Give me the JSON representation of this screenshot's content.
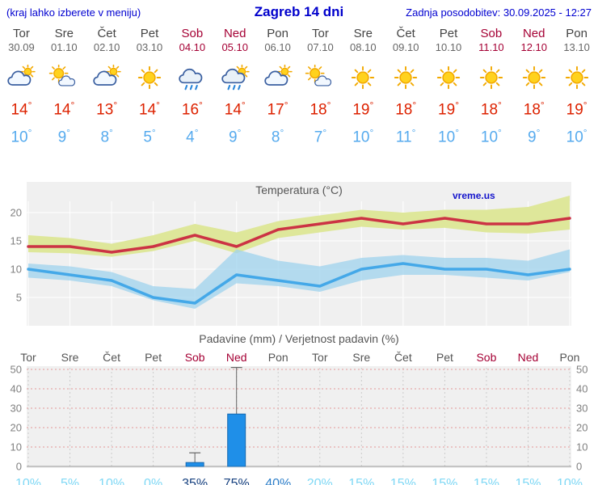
{
  "header": {
    "hint": "(kraj lahko izberete v meniju)",
    "title": "Zagreb 14 dni",
    "updated": "Zadnja posodobitev: 30.09.2025 - 12:27"
  },
  "watermark": "vreme.us",
  "colors": {
    "link_blue": "#0000d0",
    "weekend": "#a50034",
    "tmax_red": "#dd2200",
    "tmin_blue": "#55aaee",
    "temp_line_max": "#cc3344",
    "temp_line_min": "#44a8e8",
    "temp_band_max": "#dce695",
    "temp_band_min": "#9fd3ee",
    "bar_blue": "#1f8fe8",
    "panel_gray": "#f0f0f0"
  },
  "days": [
    {
      "name": "Tor",
      "date": "30.09",
      "icon": "cloud-sun",
      "tmax": 14,
      "tmin": 10,
      "weekend": false
    },
    {
      "name": "Sre",
      "date": "01.10",
      "icon": "sun-cloud",
      "tmax": 14,
      "tmin": 9,
      "weekend": false
    },
    {
      "name": "Čet",
      "date": "02.10",
      "icon": "cloud-sun",
      "tmax": 13,
      "tmin": 8,
      "weekend": false
    },
    {
      "name": "Pet",
      "date": "03.10",
      "icon": "sun",
      "tmax": 14,
      "tmin": 5,
      "weekend": false
    },
    {
      "name": "Sob",
      "date": "04.10",
      "icon": "rain",
      "tmax": 16,
      "tmin": 4,
      "weekend": true
    },
    {
      "name": "Ned",
      "date": "05.10",
      "icon": "rain-sun",
      "tmax": 14,
      "tmin": 9,
      "weekend": true
    },
    {
      "name": "Pon",
      "date": "06.10",
      "icon": "cloud-sun",
      "tmax": 17,
      "tmin": 8,
      "weekend": false
    },
    {
      "name": "Tor",
      "date": "07.10",
      "icon": "sun-cloud",
      "tmax": 18,
      "tmin": 7,
      "weekend": false
    },
    {
      "name": "Sre",
      "date": "08.10",
      "icon": "sun",
      "tmax": 19,
      "tmin": 10,
      "weekend": false
    },
    {
      "name": "Čet",
      "date": "09.10",
      "icon": "sun",
      "tmax": 18,
      "tmin": 11,
      "weekend": false
    },
    {
      "name": "Pet",
      "date": "10.10",
      "icon": "sun",
      "tmax": 19,
      "tmin": 10,
      "weekend": false
    },
    {
      "name": "Sob",
      "date": "11.10",
      "icon": "sun",
      "tmax": 18,
      "tmin": 10,
      "weekend": true
    },
    {
      "name": "Ned",
      "date": "12.10",
      "icon": "sun",
      "tmax": 18,
      "tmin": 9,
      "weekend": true
    },
    {
      "name": "Pon",
      "date": "13.10",
      "icon": "sun",
      "tmax": 19,
      "tmin": 10,
      "weekend": false
    }
  ],
  "chart_data": [
    {
      "type": "line",
      "title": "Temperatura (°C)",
      "x": [
        "Tor 30.09",
        "Sre 01.10",
        "Čet 02.10",
        "Pet 03.10",
        "Sob 04.10",
        "Ned 05.10",
        "Pon 06.10",
        "Tor 07.10",
        "Sre 08.10",
        "Čet 09.10",
        "Pet 10.10",
        "Sob 11.10",
        "Ned 12.10",
        "Pon 13.10"
      ],
      "ylim": [
        0,
        23
      ],
      "yticks": [
        5,
        10,
        15,
        20
      ],
      "grid": true,
      "series": [
        {
          "name": "max",
          "values": [
            14,
            14,
            13,
            14,
            16,
            14,
            17,
            18,
            19,
            18,
            19,
            18,
            18,
            19
          ]
        },
        {
          "name": "min",
          "values": [
            10,
            9,
            8,
            5,
            4,
            9,
            8,
            7,
            10,
            11,
            10,
            10,
            9,
            10
          ]
        },
        {
          "name": "max_range_upper",
          "values": [
            16,
            15.5,
            14.5,
            16,
            18,
            16.5,
            18.5,
            19.5,
            20.5,
            20,
            20.5,
            20.5,
            21,
            23
          ]
        },
        {
          "name": "max_range_lower",
          "values": [
            13,
            12.8,
            12.2,
            13.2,
            15,
            12.8,
            15.5,
            16.5,
            17.5,
            17,
            17.3,
            16.5,
            16.3,
            17
          ]
        },
        {
          "name": "min_range_upper",
          "values": [
            11,
            10.5,
            9.5,
            7,
            6.5,
            13.5,
            11.5,
            10.5,
            12,
            12.5,
            12,
            12,
            11.5,
            13.5
          ]
        },
        {
          "name": "min_range_lower",
          "values": [
            8.5,
            8,
            7,
            4.5,
            3,
            7.5,
            7,
            6,
            8,
            9,
            9,
            8.5,
            8,
            9.5
          ]
        }
      ]
    },
    {
      "type": "bar",
      "title": "Padavine (mm) / Verjetnost padavin (%)",
      "categories": [
        "Tor",
        "Sre",
        "Čet",
        "Pet",
        "Sob",
        "Ned",
        "Pon",
        "Tor",
        "Sre",
        "Čet",
        "Pet",
        "Sob",
        "Ned",
        "Pon"
      ],
      "ylim": [
        0,
        50
      ],
      "yticks": [
        0,
        10,
        20,
        30,
        40,
        50
      ],
      "series": [
        {
          "name": "padavine_mm",
          "values": [
            0,
            0,
            0,
            0,
            2,
            27,
            0,
            0,
            0,
            0,
            0,
            0,
            0,
            0
          ]
        },
        {
          "name": "max_padavine_mm",
          "values": [
            0,
            0,
            0,
            0,
            7,
            51,
            0,
            0,
            0,
            0,
            0,
            0,
            0,
            0
          ]
        },
        {
          "name": "verjetnost_pct",
          "values": [
            10,
            5,
            10,
            0,
            35,
            75,
            40,
            20,
            15,
            15,
            15,
            15,
            15,
            10
          ]
        }
      ],
      "pct_colors": [
        "#7fd8f5",
        "#7fd8f5",
        "#7fd8f5",
        "#7fd8f5",
        "#16407f",
        "#16407f",
        "#2e7fc9",
        "#7fd8f5",
        "#7fd8f5",
        "#7fd8f5",
        "#7fd8f5",
        "#7fd8f5",
        "#7fd8f5",
        "#7fd8f5"
      ]
    }
  ]
}
